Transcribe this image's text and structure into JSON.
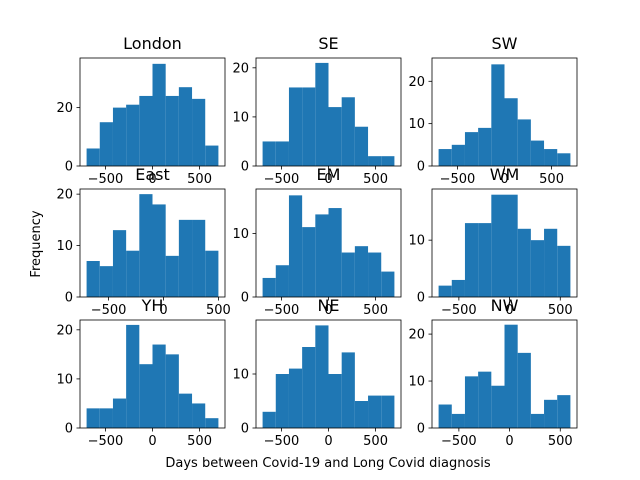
{
  "figure": {
    "xlabel": "Days between Covid-19 and Long Covid diagnosis",
    "ylabel": "Frequency"
  },
  "chart_data": [
    {
      "type": "bar",
      "title": "London",
      "bin_edges": [
        -700,
        -560,
        -420,
        -280,
        -140,
        0,
        140,
        280,
        420,
        560,
        700
      ],
      "values": [
        6,
        15,
        20,
        21,
        24,
        35,
        24,
        27,
        23,
        7
      ],
      "xlim": [
        -770,
        770
      ],
      "ylim": [
        0,
        37
      ],
      "xticks": [
        -500,
        0,
        500
      ],
      "xtick_labels": [
        "−500",
        "0",
        "500"
      ],
      "yticks": [
        0,
        20
      ],
      "ytick_labels": [
        "0",
        "20"
      ],
      "color": "#1f77b4"
    },
    {
      "type": "bar",
      "title": "SE",
      "bin_edges": [
        -700,
        -560,
        -420,
        -280,
        -140,
        0,
        140,
        280,
        420,
        560,
        700
      ],
      "values": [
        5,
        5,
        16,
        16,
        21,
        12,
        14,
        8,
        2,
        2
      ],
      "xlim": [
        -770,
        770
      ],
      "ylim": [
        0,
        22
      ],
      "xticks": [
        -500,
        0,
        500
      ],
      "xtick_labels": [
        "−500",
        "0",
        "500"
      ],
      "yticks": [
        0,
        10,
        20
      ],
      "ytick_labels": [
        "0",
        "10",
        "20"
      ],
      "color": "#1f77b4"
    },
    {
      "type": "bar",
      "title": "SW",
      "bin_edges": [
        -700,
        -560,
        -420,
        -280,
        -140,
        0,
        140,
        280,
        420,
        560,
        700
      ],
      "values": [
        4,
        5,
        8,
        9,
        24,
        16,
        11,
        6,
        4,
        3
      ],
      "xlim": [
        -770,
        770
      ],
      "ylim": [
        0,
        25.5
      ],
      "xticks": [
        -500,
        0,
        500
      ],
      "xtick_labels": [
        "−500",
        "0",
        "500"
      ],
      "yticks": [
        0,
        10,
        20
      ],
      "ytick_labels": [
        "0",
        "10",
        "20"
      ],
      "color": "#1f77b4"
    },
    {
      "type": "bar",
      "title": "East",
      "bin_edges": [
        -700,
        -580,
        -460,
        -340,
        -220,
        -100,
        20,
        140,
        260,
        380,
        500
      ],
      "values": [
        7,
        6,
        13,
        9,
        20,
        18,
        8,
        15,
        15,
        9
      ],
      "xlim": [
        -760,
        560
      ],
      "ylim": [
        0,
        21
      ],
      "xticks": [
        -500,
        0,
        500
      ],
      "xtick_labels": [
        "−500",
        "0",
        "500"
      ],
      "yticks": [
        0,
        10,
        20
      ],
      "ytick_labels": [
        "0",
        "10",
        "20"
      ],
      "color": "#1f77b4"
    },
    {
      "type": "bar",
      "title": "EM",
      "bin_edges": [
        -700,
        -560,
        -420,
        -280,
        -140,
        0,
        140,
        280,
        420,
        560,
        700
      ],
      "values": [
        3,
        5,
        16,
        11,
        13,
        14,
        7,
        8,
        7,
        4
      ],
      "xlim": [
        -770,
        770
      ],
      "ylim": [
        0,
        17
      ],
      "xticks": [
        -500,
        0,
        500
      ],
      "xtick_labels": [
        "−500",
        "0",
        "500"
      ],
      "yticks": [
        0,
        10
      ],
      "ytick_labels": [
        "0",
        "10"
      ],
      "color": "#1f77b4"
    },
    {
      "type": "bar",
      "title": "WM",
      "bin_edges": [
        -700,
        -570,
        -440,
        -310,
        -180,
        -50,
        80,
        210,
        340,
        470,
        600
      ],
      "values": [
        2,
        3,
        13,
        13,
        18,
        18,
        12,
        10,
        12,
        9
      ],
      "xlim": [
        -765,
        665
      ],
      "ylim": [
        0,
        19
      ],
      "xticks": [
        -500,
        0,
        500
      ],
      "xtick_labels": [
        "−500",
        "0",
        "500"
      ],
      "yticks": [
        0,
        10
      ],
      "ytick_labels": [
        "0",
        "10"
      ],
      "color": "#1f77b4"
    },
    {
      "type": "bar",
      "title": "YH",
      "bin_edges": [
        -700,
        -560,
        -420,
        -280,
        -140,
        0,
        140,
        280,
        420,
        560,
        700
      ],
      "values": [
        4,
        4,
        6,
        21,
        13,
        17,
        15,
        7,
        5,
        2
      ],
      "xlim": [
        -770,
        770
      ],
      "ylim": [
        0,
        22
      ],
      "xticks": [
        -500,
        0,
        500
      ],
      "xtick_labels": [
        "−500",
        "0",
        "500"
      ],
      "yticks": [
        0,
        10,
        20
      ],
      "ytick_labels": [
        "0",
        "10",
        "20"
      ],
      "color": "#1f77b4"
    },
    {
      "type": "bar",
      "title": "NE",
      "bin_edges": [
        -700,
        -560,
        -420,
        -280,
        -140,
        0,
        140,
        280,
        420,
        560,
        700
      ],
      "values": [
        3,
        10,
        11,
        15,
        19,
        10,
        14,
        5,
        6,
        6
      ],
      "xlim": [
        -770,
        770
      ],
      "ylim": [
        0,
        20
      ],
      "xticks": [
        -500,
        0,
        500
      ],
      "xtick_labels": [
        "−500",
        "0",
        "500"
      ],
      "yticks": [
        0,
        10
      ],
      "ytick_labels": [
        "0",
        "10"
      ],
      "color": "#1f77b4"
    },
    {
      "type": "bar",
      "title": "NW",
      "bin_edges": [
        -700,
        -570,
        -440,
        -310,
        -180,
        -50,
        80,
        210,
        340,
        470,
        600
      ],
      "values": [
        5,
        3,
        11,
        12,
        9,
        22,
        16,
        3,
        6,
        7
      ],
      "xlim": [
        -765,
        665
      ],
      "ylim": [
        0,
        23
      ],
      "xticks": [
        -500,
        0,
        500
      ],
      "xtick_labels": [
        "−500",
        "0",
        "500"
      ],
      "yticks": [
        0,
        10,
        20
      ],
      "ytick_labels": [
        "0",
        "10",
        "20"
      ],
      "color": "#1f77b4"
    }
  ]
}
